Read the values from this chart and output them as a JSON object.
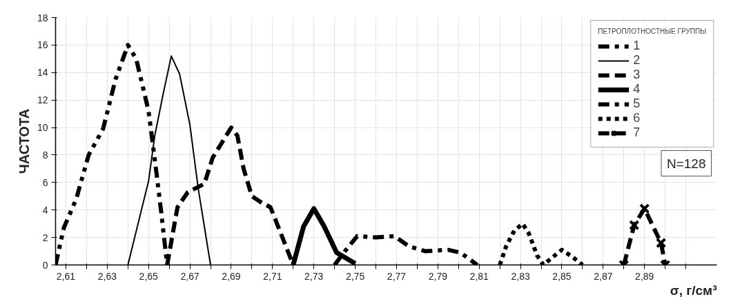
{
  "chart_data": {
    "type": "line",
    "xlabel": "σ, г/см³",
    "ylabel": "ЧАСТОТА",
    "legend_title": "ПЕТРОПЛОТНОСТНЫЕ ГРУППЫ",
    "annotations": [
      "N=128"
    ],
    "xlim": [
      2.605,
      2.925
    ],
    "ylim": [
      0,
      18
    ],
    "xticks": [
      {
        "value": 2.61,
        "label": "2,61"
      },
      {
        "value": 2.62,
        "label": null
      },
      {
        "value": 2.63,
        "label": "2,63"
      },
      {
        "value": 2.64,
        "label": null
      },
      {
        "value": 2.65,
        "label": "2,65"
      },
      {
        "value": 2.66,
        "label": null
      },
      {
        "value": 2.67,
        "label": "2,67"
      },
      {
        "value": 2.68,
        "label": null
      },
      {
        "value": 2.69,
        "label": "2,69"
      },
      {
        "value": 2.7,
        "label": null
      },
      {
        "value": 2.71,
        "label": "2,71"
      },
      {
        "value": 2.72,
        "label": null
      },
      {
        "value": 2.73,
        "label": "2,73"
      },
      {
        "value": 2.74,
        "label": null
      },
      {
        "value": 2.75,
        "label": "2,75"
      },
      {
        "value": 2.76,
        "label": null
      },
      {
        "value": 2.77,
        "label": "2,77"
      },
      {
        "value": 2.78,
        "label": null
      },
      {
        "value": 2.79,
        "label": "2,79"
      },
      {
        "value": 2.8,
        "label": null
      },
      {
        "value": 2.81,
        "label": "2,81"
      },
      {
        "value": 2.82,
        "label": null
      },
      {
        "value": 2.83,
        "label": "2,83"
      },
      {
        "value": 2.84,
        "label": null
      },
      {
        "value": 2.85,
        "label": "2,85"
      },
      {
        "value": 2.86,
        "label": null
      },
      {
        "value": 2.87,
        "label": "2,87"
      },
      {
        "value": 2.88,
        "label": null
      },
      {
        "value": 2.89,
        "label": "2,89"
      },
      {
        "value": 2.9,
        "label": null
      },
      {
        "value": 2.91,
        "label": null
      }
    ],
    "yticks": [
      0,
      2,
      4,
      6,
      8,
      10,
      12,
      14,
      16,
      18
    ],
    "grid": true,
    "legend": "top right",
    "series": [
      {
        "name": "1",
        "color": "#000000",
        "line_style": "dashdotdot",
        "x": [
          2.605,
          2.609,
          2.615,
          2.621,
          2.628,
          2.634,
          2.64,
          2.644,
          2.65,
          2.654,
          2.656,
          2.659
        ],
        "values": [
          0,
          2.7,
          4.8,
          8,
          9.9,
          13.5,
          16,
          15,
          11.2,
          6.5,
          4,
          0
        ]
      },
      {
        "name": "2",
        "color": "#000000",
        "line_style": "solid",
        "x": [
          2.64,
          2.65,
          2.653,
          2.657,
          2.661,
          2.665,
          2.67,
          2.674,
          2.68
        ],
        "values": [
          0,
          6.1,
          9.4,
          12.4,
          15.2,
          13.9,
          10.2,
          5.6,
          0
        ]
      },
      {
        "name": "3",
        "color": "#000000",
        "line_style": "dashed",
        "x": [
          2.659,
          2.664,
          2.669,
          2.677,
          2.681,
          2.69,
          2.693,
          2.696,
          2.7,
          2.704,
          2.709,
          2.714,
          2.72
        ],
        "values": [
          0,
          4.2,
          5.3,
          5.9,
          7.8,
          10,
          9.4,
          7,
          5,
          4.6,
          4.2,
          2.3,
          0
        ]
      },
      {
        "name": "4",
        "color": "#000000",
        "line_style": "solid",
        "x": [
          2.72,
          2.725,
          2.73,
          2.735,
          2.741,
          2.75
        ],
        "values": [
          0,
          2.8,
          4.1,
          2.8,
          0.9,
          0.1
        ]
      },
      {
        "name": "5",
        "color": "#000000",
        "line_style": "dashdot",
        "x": [
          2.74,
          2.745,
          2.751,
          2.76,
          2.769,
          2.776,
          2.784,
          2.795,
          2.801,
          2.809
        ],
        "values": [
          0,
          1,
          2.1,
          2,
          2.1,
          1.35,
          1,
          1.1,
          0.9,
          0
        ]
      },
      {
        "name": "6",
        "color": "#000000",
        "line_style": "dotted",
        "x": [
          2.82,
          2.823,
          2.827,
          2.831,
          2.834,
          2.838,
          2.841,
          2.845,
          2.85,
          2.855,
          2.86
        ],
        "values": [
          0,
          1.35,
          2.5,
          3,
          2.3,
          0.7,
          0,
          0.5,
          1.1,
          0.6,
          0
        ]
      },
      {
        "name": "7",
        "color": "#000000",
        "line_style": "dashed",
        "marker": "cross",
        "x": [
          2.88,
          2.885,
          2.89,
          2.898,
          2.9
        ],
        "values": [
          0,
          2.9,
          4.1,
          1.6,
          0
        ]
      }
    ]
  }
}
